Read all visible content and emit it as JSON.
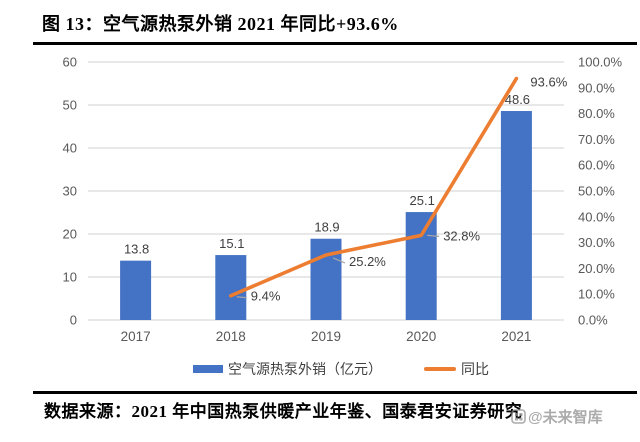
{
  "header": {
    "title": "图 13：空气源热泵外销 2021 年同比+93.6%"
  },
  "legend": {
    "bar_label": "空气源热泵外销（亿元）",
    "line_label": "同比"
  },
  "footer": {
    "source": "数据来源：2021 年中国热泵供暖产业年鉴、国泰君安证券研究",
    "watermark": "@未来智库"
  },
  "colors": {
    "bar": "#4472C4",
    "line": "#ED7D31",
    "grid": "#D9D9D9",
    "axis_text": "#595959",
    "label_text": "#404040",
    "leader": "#A6A6A6",
    "divider": "#000000",
    "watermark": "#8C8C8C"
  },
  "chart_data": {
    "type": "bar",
    "subtype": "combo bar + line, dual y-axis",
    "title": "空气源热泵外销 2021 年同比+93.6%",
    "categories": [
      "2017",
      "2018",
      "2019",
      "2020",
      "2021"
    ],
    "series": [
      {
        "name": "空气源热泵外销（亿元）",
        "type": "bar",
        "axis": "left",
        "values": [
          13.8,
          15.1,
          18.9,
          25.1,
          48.6
        ],
        "labels": [
          "13.8",
          "15.1",
          "18.9",
          "25.1",
          "48.6"
        ]
      },
      {
        "name": "同比",
        "type": "line",
        "axis": "right",
        "values": [
          null,
          9.4,
          25.2,
          32.8,
          93.6
        ],
        "labels": [
          null,
          "9.4%",
          "25.2%",
          "32.8%",
          "93.6%"
        ]
      }
    ],
    "left_axis": {
      "min": 0,
      "max": 60,
      "step": 10,
      "ticks": [
        "0",
        "10",
        "20",
        "30",
        "40",
        "50",
        "60"
      ]
    },
    "right_axis": {
      "min": 0,
      "max": 100,
      "step": 10,
      "ticks": [
        "0.0%",
        "10.0%",
        "20.0%",
        "30.0%",
        "40.0%",
        "50.0%",
        "60.0%",
        "70.0%",
        "80.0%",
        "90.0%",
        "100.0%"
      ]
    },
    "grid": true,
    "legend_position": "bottom"
  }
}
